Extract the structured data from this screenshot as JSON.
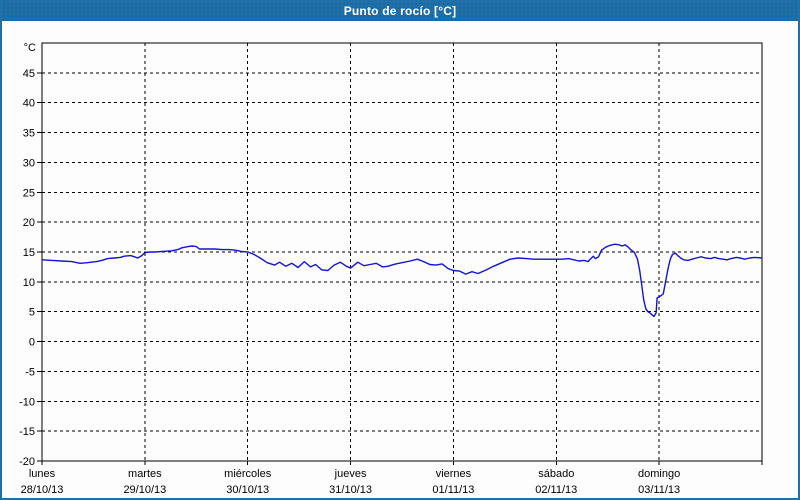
{
  "window": {
    "title": "Punto de rocío [°C]"
  },
  "colors": {
    "frame_blue": "#1f6fa8",
    "background": "#fcfdfc",
    "grid": "#000000",
    "axis": "#000000",
    "series_line": "#1414cc",
    "label_text": "#000000",
    "title_text": "#ffffff"
  },
  "axes": {
    "unit_label": "°C",
    "y_tick_labels": [
      45,
      40,
      35,
      30,
      25,
      20,
      15,
      10,
      5,
      0,
      -5,
      -10,
      -15,
      -20
    ],
    "x_day_labels": [
      {
        "name": "lunes",
        "date": "28/10/13"
      },
      {
        "name": "martes",
        "date": "29/10/13"
      },
      {
        "name": "miércoles",
        "date": "30/10/13"
      },
      {
        "name": "jueves",
        "date": "31/10/13"
      },
      {
        "name": "viernes",
        "date": "01/11/13"
      },
      {
        "name": "sábado",
        "date": "02/11/13"
      },
      {
        "name": "domingo",
        "date": "03/11/13"
      }
    ]
  },
  "chart_data": {
    "type": "line",
    "title": "Punto de rocío [°C]",
    "ylabel": "°C",
    "ylim": [
      -20,
      50
    ],
    "y_grid_step": 5,
    "xlim_days": [
      0,
      7
    ],
    "x_unit": "days (ticks at 00:00 of each day, lunes 28/10/13 through domingo 03/11/13)",
    "grid": "dashed",
    "legend": "none",
    "series": [
      {
        "name": "Punto de rocío",
        "color": "#1414cc",
        "points": [
          [
            0.0,
            13.7
          ],
          [
            0.1,
            13.6
          ],
          [
            0.19,
            13.5
          ],
          [
            0.29,
            13.4
          ],
          [
            0.37,
            13.1
          ],
          [
            0.44,
            13.2
          ],
          [
            0.53,
            13.4
          ],
          [
            0.58,
            13.6
          ],
          [
            0.64,
            13.9
          ],
          [
            0.7,
            14.0
          ],
          [
            0.76,
            14.1
          ],
          [
            0.8,
            14.3
          ],
          [
            0.86,
            14.4
          ],
          [
            0.9,
            14.2
          ],
          [
            0.93,
            14.0
          ],
          [
            0.97,
            14.4
          ],
          [
            1.0,
            14.9
          ],
          [
            1.05,
            15.0
          ],
          [
            1.1,
            15.0
          ],
          [
            1.17,
            15.1
          ],
          [
            1.26,
            15.2
          ],
          [
            1.32,
            15.4
          ],
          [
            1.36,
            15.7
          ],
          [
            1.42,
            15.9
          ],
          [
            1.46,
            16.0
          ],
          [
            1.5,
            15.9
          ],
          [
            1.53,
            15.5
          ],
          [
            1.6,
            15.5
          ],
          [
            1.68,
            15.5
          ],
          [
            1.75,
            15.4
          ],
          [
            1.82,
            15.4
          ],
          [
            1.88,
            15.3
          ],
          [
            1.94,
            15.1
          ],
          [
            2.0,
            15.0
          ],
          [
            2.06,
            14.6
          ],
          [
            2.12,
            14.0
          ],
          [
            2.19,
            13.2
          ],
          [
            2.26,
            12.8
          ],
          [
            2.31,
            13.3
          ],
          [
            2.37,
            12.6
          ],
          [
            2.43,
            13.1
          ],
          [
            2.49,
            12.4
          ],
          [
            2.55,
            13.4
          ],
          [
            2.61,
            12.5
          ],
          [
            2.66,
            12.9
          ],
          [
            2.72,
            12.0
          ],
          [
            2.78,
            11.9
          ],
          [
            2.84,
            12.8
          ],
          [
            2.9,
            13.3
          ],
          [
            2.96,
            12.6
          ],
          [
            3.0,
            12.3
          ],
          [
            3.07,
            13.3
          ],
          [
            3.13,
            12.7
          ],
          [
            3.19,
            12.9
          ],
          [
            3.25,
            13.1
          ],
          [
            3.31,
            12.5
          ],
          [
            3.36,
            12.6
          ],
          [
            3.44,
            13.0
          ],
          [
            3.5,
            13.2
          ],
          [
            3.58,
            13.5
          ],
          [
            3.65,
            13.8
          ],
          [
            3.71,
            13.4
          ],
          [
            3.77,
            12.9
          ],
          [
            3.83,
            12.8
          ],
          [
            3.89,
            13.0
          ],
          [
            3.95,
            12.2
          ],
          [
            4.0,
            11.9
          ],
          [
            4.06,
            11.8
          ],
          [
            4.12,
            11.3
          ],
          [
            4.18,
            11.7
          ],
          [
            4.24,
            11.4
          ],
          [
            4.32,
            12.0
          ],
          [
            4.39,
            12.6
          ],
          [
            4.47,
            13.2
          ],
          [
            4.55,
            13.8
          ],
          [
            4.63,
            14.0
          ],
          [
            4.71,
            13.9
          ],
          [
            4.78,
            13.8
          ],
          [
            4.88,
            13.8
          ],
          [
            5.0,
            13.8
          ],
          [
            5.06,
            13.8
          ],
          [
            5.12,
            13.9
          ],
          [
            5.17,
            13.7
          ],
          [
            5.22,
            13.5
          ],
          [
            5.27,
            13.6
          ],
          [
            5.31,
            13.4
          ],
          [
            5.33,
            13.8
          ],
          [
            5.36,
            14.3
          ],
          [
            5.38,
            13.9
          ],
          [
            5.41,
            14.2
          ],
          [
            5.44,
            15.3
          ],
          [
            5.48,
            15.8
          ],
          [
            5.52,
            16.1
          ],
          [
            5.57,
            16.3
          ],
          [
            5.61,
            16.2
          ],
          [
            5.64,
            16.0
          ],
          [
            5.67,
            16.2
          ],
          [
            5.7,
            15.8
          ],
          [
            5.73,
            15.3
          ],
          [
            5.76,
            14.9
          ],
          [
            5.79,
            13.8
          ],
          [
            5.81,
            12.0
          ],
          [
            5.83,
            9.5
          ],
          [
            5.85,
            7.0
          ],
          [
            5.87,
            5.5
          ],
          [
            5.89,
            5.0
          ],
          [
            5.91,
            4.8
          ],
          [
            5.93,
            4.5
          ],
          [
            5.95,
            4.2
          ],
          [
            5.97,
            4.8
          ],
          [
            5.98,
            7.3
          ],
          [
            6.0,
            7.5
          ],
          [
            6.02,
            7.7
          ],
          [
            6.04,
            8.0
          ],
          [
            6.06,
            9.8
          ],
          [
            6.09,
            12.5
          ],
          [
            6.11,
            13.9
          ],
          [
            6.13,
            14.6
          ],
          [
            6.16,
            14.8
          ],
          [
            6.18,
            14.4
          ],
          [
            6.21,
            14.0
          ],
          [
            6.24,
            13.7
          ],
          [
            6.28,
            13.6
          ],
          [
            6.32,
            13.8
          ],
          [
            6.36,
            14.0
          ],
          [
            6.41,
            14.2
          ],
          [
            6.45,
            14.0
          ],
          [
            6.5,
            13.9
          ],
          [
            6.54,
            14.1
          ],
          [
            6.58,
            13.9
          ],
          [
            6.62,
            13.8
          ],
          [
            6.66,
            13.7
          ],
          [
            6.7,
            13.9
          ],
          [
            6.75,
            14.1
          ],
          [
            6.79,
            14.0
          ],
          [
            6.83,
            13.8
          ],
          [
            6.88,
            14.0
          ],
          [
            6.93,
            14.1
          ],
          [
            7.0,
            14.0
          ]
        ]
      }
    ]
  }
}
